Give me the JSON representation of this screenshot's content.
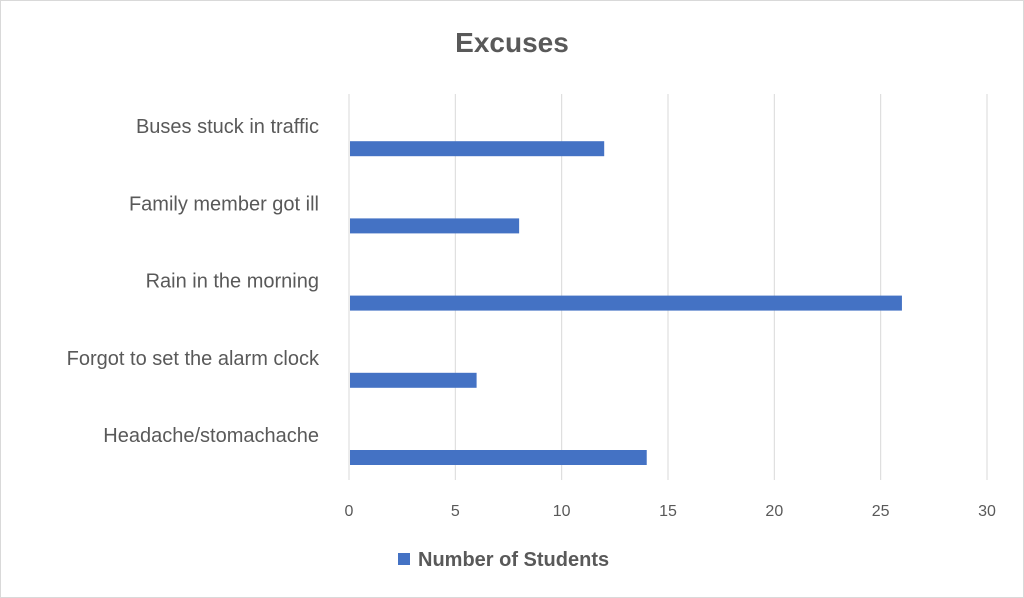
{
  "chart_data": {
    "type": "bar",
    "orientation": "horizontal",
    "title": "Excuses",
    "categories": [
      "Buses stuck in traffic",
      "Family member got ill",
      "Rain in the morning",
      "Forgot to set the alarm clock",
      "Headache/stomachache"
    ],
    "series": [
      {
        "name": "Number of Students",
        "values": [
          12,
          8,
          26,
          6,
          14
        ],
        "color": "#4472c4"
      }
    ],
    "xlim": [
      0,
      30
    ],
    "x_ticks": [
      "0",
      "5",
      "10",
      "15",
      "20",
      "25",
      "30"
    ],
    "grid": true,
    "legend_position": "bottom"
  },
  "colors": {
    "bar": "#4472c4",
    "grid": "#d9d9d9",
    "text": "#595959"
  }
}
